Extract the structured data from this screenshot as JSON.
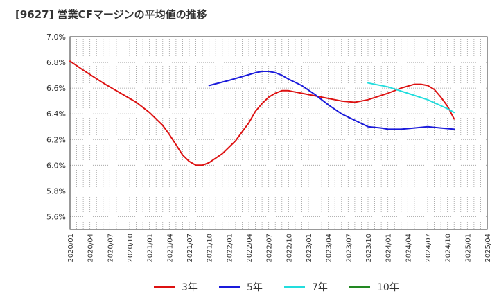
{
  "chart_data": {
    "type": "line",
    "title": "[9627]  営業CFマージンの平均値の推移",
    "y_unit": "%",
    "ylim": [
      5.5,
      7.0
    ],
    "yticks": [
      "5.6%",
      "5.8%",
      "6.0%",
      "6.2%",
      "6.4%",
      "6.6%",
      "6.8%",
      "7.0%"
    ],
    "xticks": [
      "2020/01",
      "2020/04",
      "2020/07",
      "2020/10",
      "2021/01",
      "2021/04",
      "2021/07",
      "2021/10",
      "2022/01",
      "2022/04",
      "2022/07",
      "2022/10",
      "2023/01",
      "2023/04",
      "2023/07",
      "2023/10",
      "2024/01",
      "2024/04",
      "2024/07",
      "2024/10",
      "2025/01",
      "2025/04"
    ],
    "xlim": [
      "2020/01",
      "2025/04"
    ],
    "grid": true,
    "legend_position": "bottom",
    "series": [
      {
        "name": "3年",
        "color": "#dd1111",
        "points": [
          [
            "2020/01",
            6.81
          ],
          [
            "2020/03",
            6.74
          ],
          [
            "2020/06",
            6.64
          ],
          [
            "2020/09",
            6.55
          ],
          [
            "2020/11",
            6.49
          ],
          [
            "2021/01",
            6.41
          ],
          [
            "2021/03",
            6.31
          ],
          [
            "2021/04",
            6.24
          ],
          [
            "2021/05",
            6.16
          ],
          [
            "2021/06",
            6.08
          ],
          [
            "2021/07",
            6.03
          ],
          [
            "2021/08",
            6.0
          ],
          [
            "2021/09",
            6.0
          ],
          [
            "2021/10",
            6.02
          ],
          [
            "2021/12",
            6.09
          ],
          [
            "2022/02",
            6.19
          ],
          [
            "2022/03",
            6.26
          ],
          [
            "2022/04",
            6.33
          ],
          [
            "2022/05",
            6.42
          ],
          [
            "2022/06",
            6.48
          ],
          [
            "2022/07",
            6.53
          ],
          [
            "2022/08",
            6.56
          ],
          [
            "2022/09",
            6.58
          ],
          [
            "2022/10",
            6.58
          ],
          [
            "2022/11",
            6.57
          ],
          [
            "2023/01",
            6.55
          ],
          [
            "2023/03",
            6.53
          ],
          [
            "2023/05",
            6.51
          ],
          [
            "2023/06",
            6.5
          ],
          [
            "2023/08",
            6.49
          ],
          [
            "2023/09",
            6.5
          ],
          [
            "2023/10",
            6.51
          ],
          [
            "2024/01",
            6.56
          ],
          [
            "2024/03",
            6.6
          ],
          [
            "2024/05",
            6.63
          ],
          [
            "2024/06",
            6.63
          ],
          [
            "2024/07",
            6.62
          ],
          [
            "2024/08",
            6.59
          ],
          [
            "2024/09",
            6.53
          ],
          [
            "2024/10",
            6.46
          ],
          [
            "2024/11",
            6.36
          ]
        ]
      },
      {
        "name": "5年",
        "color": "#1a1adb",
        "points": [
          [
            "2021/10",
            6.62
          ],
          [
            "2022/01",
            6.66
          ],
          [
            "2022/03",
            6.69
          ],
          [
            "2022/05",
            6.72
          ],
          [
            "2022/06",
            6.73
          ],
          [
            "2022/07",
            6.73
          ],
          [
            "2022/08",
            6.72
          ],
          [
            "2022/09",
            6.7
          ],
          [
            "2022/10",
            6.67
          ],
          [
            "2022/12",
            6.62
          ],
          [
            "2023/02",
            6.55
          ],
          [
            "2023/04",
            6.47
          ],
          [
            "2023/06",
            6.4
          ],
          [
            "2023/08",
            6.35
          ],
          [
            "2023/10",
            6.3
          ],
          [
            "2023/12",
            6.29
          ],
          [
            "2024/01",
            6.28
          ],
          [
            "2024/03",
            6.28
          ],
          [
            "2024/05",
            6.29
          ],
          [
            "2024/07",
            6.3
          ],
          [
            "2024/09",
            6.29
          ],
          [
            "2024/11",
            6.28
          ]
        ]
      },
      {
        "name": "7年",
        "color": "#22dddd",
        "points": [
          [
            "2023/10",
            6.64
          ],
          [
            "2024/01",
            6.61
          ],
          [
            "2024/04",
            6.56
          ],
          [
            "2024/07",
            6.51
          ],
          [
            "2024/10",
            6.44
          ],
          [
            "2024/11",
            6.41
          ]
        ]
      },
      {
        "name": "10年",
        "color": "#228822",
        "points": []
      }
    ]
  }
}
